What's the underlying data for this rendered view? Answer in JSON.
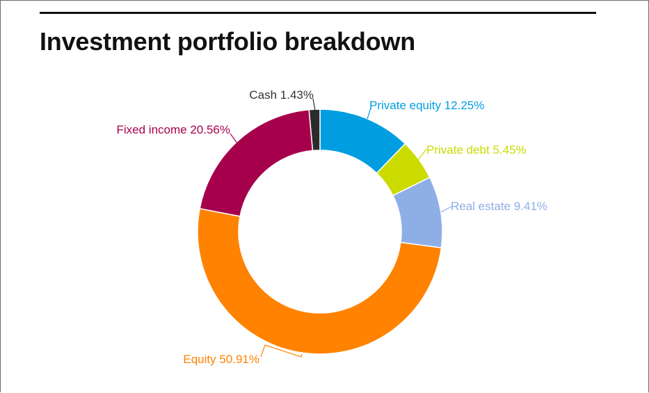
{
  "title": "Investment portfolio breakdown",
  "chart_data": {
    "type": "pie",
    "variant": "donut",
    "title": "Investment portfolio breakdown",
    "slices": [
      {
        "label": "Private equity",
        "value": 12.25,
        "display": "Private equity 12.25%",
        "color": "#009ee0"
      },
      {
        "label": "Private debt",
        "value": 5.45,
        "display": "Private debt 5.45%",
        "color": "#cbdb00"
      },
      {
        "label": "Real estate",
        "value": 9.41,
        "display": "Real estate 9.41%",
        "color": "#8eaee6"
      },
      {
        "label": "Equity",
        "value": 50.91,
        "display": "Equity 50.91%",
        "color": "#ff8200"
      },
      {
        "label": "Fixed income",
        "value": 20.56,
        "display": "Fixed income 20.56%",
        "color": "#a6004c"
      },
      {
        "label": "Cash",
        "value": 1.43,
        "display": "Cash 1.43%",
        "color": "#2b2b2b"
      }
    ],
    "start_angle": "12 o'clock",
    "direction": "clockwise",
    "legend": "none"
  }
}
